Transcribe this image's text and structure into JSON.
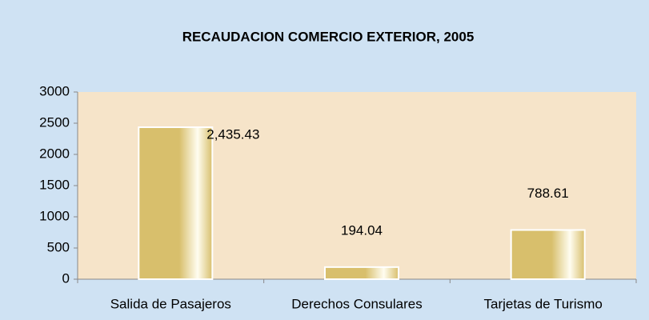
{
  "chart_data": {
    "type": "bar",
    "title": "RECAUDACION COMERCIO EXTERIOR, 2005",
    "categories": [
      "Salida de Pasajeros",
      "Derechos Consulares",
      "Tarjetas de Turismo"
    ],
    "values": [
      2435.43,
      194.04,
      788.61
    ],
    "value_labels": [
      "2,435.43",
      "194.04",
      "788.61"
    ],
    "color": "#d8bf6c",
    "ylim": [
      0,
      3000
    ],
    "yticks": [
      0,
      500,
      1000,
      1500,
      2000,
      2500,
      3000
    ],
    "grid": false
  }
}
